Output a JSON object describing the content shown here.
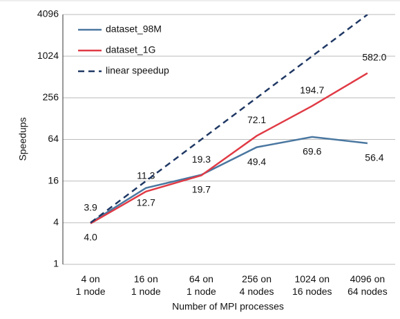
{
  "chart_data": {
    "type": "line",
    "categories": [
      "4 on\n1 node",
      "16 on\n1 node",
      "64 on\n1 node",
      "256  on\n4 nodes",
      "1024 on\n16 nodes",
      "4096  on\n64 nodes"
    ],
    "series": [
      {
        "name": "dataset_98M",
        "color": "#4a77a0",
        "values": [
          4.0,
          12.7,
          19.7,
          49.4,
          69.6,
          56.4
        ],
        "value_labels": [
          "4.0",
          "12.7",
          "19.7",
          "49.4",
          "69.6",
          "56.4"
        ]
      },
      {
        "name": "dataset_1G",
        "color": "#e03a45",
        "values": [
          3.9,
          11.3,
          19.3,
          72.1,
          194.7,
          582.0
        ],
        "value_labels": [
          "3.9",
          "11.3",
          "19.3",
          "72.1",
          "194.7",
          "582.0"
        ]
      },
      {
        "name": "linear speedup",
        "color": "#1f3864",
        "dashed": true,
        "values": [
          4,
          16,
          64,
          256,
          1024,
          4096
        ]
      }
    ],
    "ylim": [
      1,
      4096
    ],
    "yticks": [
      1,
      4,
      16,
      64,
      256,
      1024,
      4096
    ],
    "log_scale_y": true,
    "log_base": 2,
    "grid": true,
    "legend": "upper left",
    "xlabel": "Number of MPI processes",
    "ylabel": "Speedups"
  }
}
